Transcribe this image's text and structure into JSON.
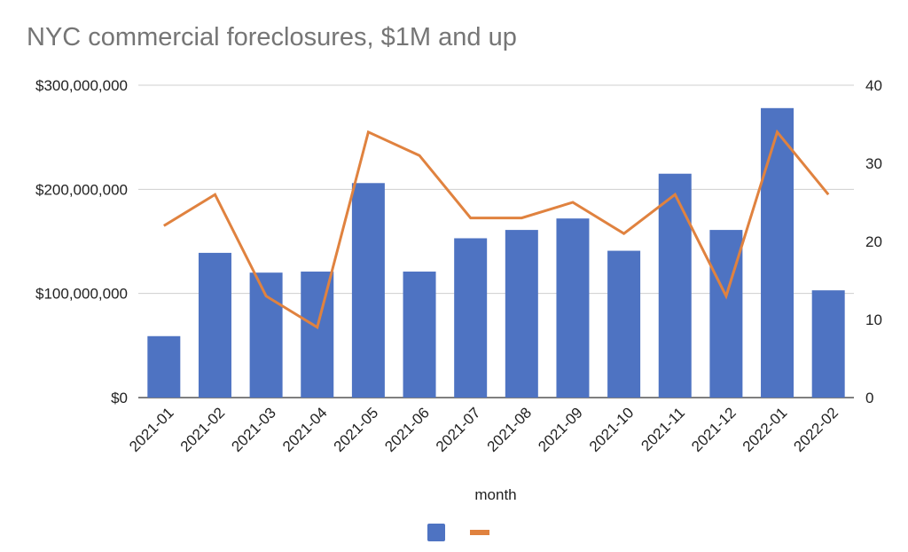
{
  "chart_data": {
    "type": "bar",
    "title": "NYC commercial foreclosures, $1M and up",
    "xlabel": "month",
    "categories": [
      "2021-01",
      "2021-02",
      "2021-03",
      "2021-04",
      "2021-05",
      "2021-06",
      "2021-07",
      "2021-08",
      "2021-09",
      "2021-10",
      "2021-11",
      "2021-12",
      "2022-01",
      "2022-02"
    ],
    "series": [
      {
        "kind": "bar",
        "axis": "left",
        "color": "#4e73c2",
        "values": [
          59000000,
          139000000,
          120000000,
          121000000,
          206000000,
          121000000,
          153000000,
          161000000,
          172000000,
          141000000,
          215000000,
          161000000,
          278000000,
          103000000
        ]
      },
      {
        "kind": "line",
        "axis": "right",
        "color": "#e0823f",
        "values": [
          22,
          26,
          13,
          9,
          34,
          31,
          23,
          23,
          25,
          21,
          26,
          13,
          34,
          26
        ]
      }
    ],
    "y_left": {
      "lim": [
        0,
        300000000
      ],
      "ticks": [
        0,
        100000000,
        200000000,
        300000000
      ],
      "tick_labels": [
        "$0",
        "$100,000,000",
        "$200,000,000",
        "$300,000,000"
      ]
    },
    "y_right": {
      "lim": [
        0,
        40
      ],
      "ticks": [
        0,
        10,
        20,
        30,
        40
      ],
      "tick_labels": [
        "0",
        "10",
        "20",
        "30",
        "40"
      ]
    },
    "grid": true,
    "legend_position": "bottom"
  }
}
